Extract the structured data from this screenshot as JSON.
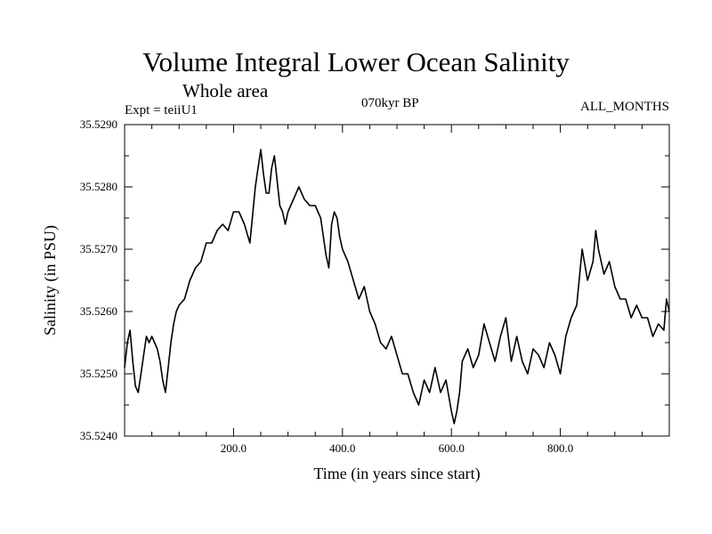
{
  "header": {
    "title": "Volume Integral Lower Ocean Salinity",
    "subtitle": "Whole area",
    "expt": "Expt = teiiU1",
    "period": "070kyr BP",
    "months": "ALL_MONTHS"
  },
  "chart_data": {
    "type": "line",
    "title": "Volume Integral Lower Ocean Salinity",
    "subtitle": "Whole area",
    "xlabel": "Time (in years since start)",
    "ylabel": "Salinity (in PSU)",
    "xlim": [
      0,
      1000
    ],
    "ylim": [
      35.524,
      35.529
    ],
    "x_ticks": [
      200,
      400,
      600,
      800
    ],
    "x_tick_labels": [
      "200.0",
      "400.0",
      "600.0",
      "800.0"
    ],
    "y_ticks": [
      35.524,
      35.525,
      35.526,
      35.527,
      35.528,
      35.529
    ],
    "y_tick_labels": [
      "35.5240",
      "35.5250",
      "35.5260",
      "35.5270",
      "35.5280",
      "35.5290"
    ],
    "grid": false,
    "color": "#000000",
    "series": [
      {
        "x": [
          0,
          5,
          10,
          15,
          20,
          25,
          30,
          35,
          40,
          45,
          50,
          55,
          60,
          65,
          70,
          75,
          80,
          85,
          90,
          95,
          100,
          110,
          120,
          130,
          140,
          150,
          160,
          170,
          180,
          190,
          200,
          210,
          220,
          230,
          240,
          245,
          250,
          255,
          260,
          265,
          270,
          275,
          280,
          285,
          290,
          295,
          300,
          310,
          320,
          330,
          340,
          350,
          360,
          370,
          375,
          380,
          385,
          390,
          395,
          400,
          410,
          420,
          430,
          440,
          450,
          460,
          470,
          480,
          490,
          500,
          510,
          520,
          530,
          540,
          550,
          560,
          570,
          580,
          590,
          600,
          605,
          610,
          615,
          620,
          630,
          640,
          650,
          660,
          670,
          680,
          690,
          700,
          710,
          720,
          730,
          740,
          750,
          760,
          770,
          780,
          790,
          800,
          810,
          820,
          830,
          840,
          850,
          860,
          865,
          870,
          880,
          890,
          900,
          910,
          920,
          930,
          940,
          950,
          960,
          970,
          980,
          990,
          995,
          1000
        ],
        "y": [
          35.5251,
          35.5255,
          35.5257,
          35.5252,
          35.5248,
          35.5247,
          35.525,
          35.5253,
          35.5256,
          35.5255,
          35.5256,
          35.5255,
          35.5254,
          35.5252,
          35.5249,
          35.5247,
          35.5251,
          35.5255,
          35.5258,
          35.526,
          35.5261,
          35.5262,
          35.5265,
          35.5267,
          35.5268,
          35.5271,
          35.5271,
          35.5273,
          35.5274,
          35.5273,
          35.5276,
          35.5276,
          35.5274,
          35.5271,
          35.528,
          35.5283,
          35.5286,
          35.5282,
          35.5279,
          35.5279,
          35.5283,
          35.5285,
          35.5281,
          35.5277,
          35.5276,
          35.5274,
          35.5276,
          35.5278,
          35.528,
          35.5278,
          35.5277,
          35.5277,
          35.5275,
          35.5269,
          35.5267,
          35.5274,
          35.5276,
          35.5275,
          35.5272,
          35.527,
          35.5268,
          35.5265,
          35.5262,
          35.5264,
          35.526,
          35.5258,
          35.5255,
          35.5254,
          35.5256,
          35.5253,
          35.525,
          35.525,
          35.5247,
          35.5245,
          35.5249,
          35.5247,
          35.5251,
          35.5247,
          35.5249,
          35.5244,
          35.5242,
          35.5244,
          35.5247,
          35.5252,
          35.5254,
          35.5251,
          35.5253,
          35.5258,
          35.5255,
          35.5252,
          35.5256,
          35.5259,
          35.5252,
          35.5256,
          35.5252,
          35.525,
          35.5254,
          35.5253,
          35.5251,
          35.5255,
          35.5253,
          35.525,
          35.5256,
          35.5259,
          35.5261,
          35.527,
          35.5265,
          35.5268,
          35.5273,
          35.527,
          35.5266,
          35.5268,
          35.5264,
          35.5262,
          35.5262,
          35.5259,
          35.5261,
          35.5259,
          35.5259,
          35.5256,
          35.5258,
          35.5257,
          35.5262,
          35.526
        ]
      }
    ]
  }
}
